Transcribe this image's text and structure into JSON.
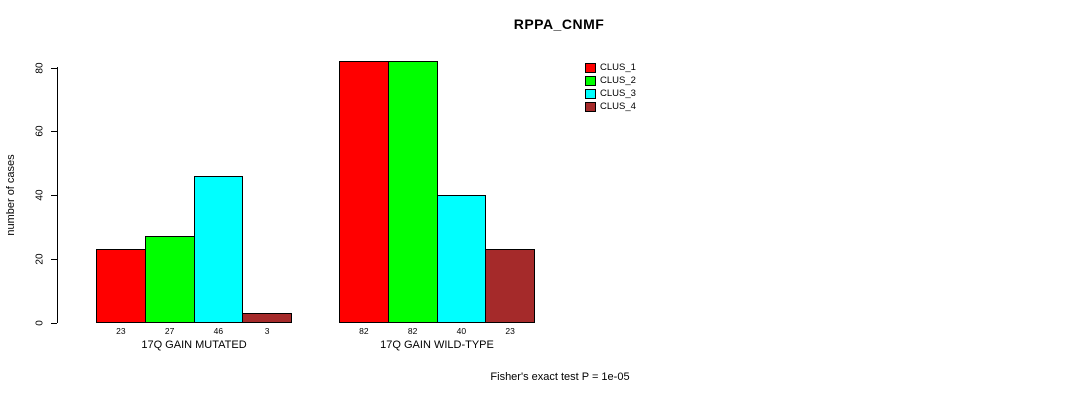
{
  "title": "RPPA_CNMF",
  "footer": "Fisher's exact test P = 1e-05",
  "colors": {
    "clus_1": "#FF0000",
    "clus_2": "#00FF00",
    "clus_3": "#00FFFF",
    "clus_4": "#A52A2A",
    "axis": "#000000",
    "background": "#FFFFFF"
  },
  "chart_data": {
    "type": "bar",
    "title": "RPPA_CNMF",
    "xlabel": "",
    "ylabel": "number of cases",
    "ylim": [
      0,
      85
    ],
    "yticks": [
      0,
      20,
      40,
      60,
      80
    ],
    "grid": false,
    "legend_position": "top-right",
    "categories": [
      "17Q GAIN MUTATED",
      "17Q GAIN WILD-TYPE"
    ],
    "series": [
      {
        "name": "CLUS_1",
        "color": "#FF0000",
        "values": [
          23,
          82
        ]
      },
      {
        "name": "CLUS_2",
        "color": "#00FF00",
        "values": [
          27,
          82
        ]
      },
      {
        "name": "CLUS_3",
        "color": "#00FFFF",
        "values": [
          46,
          40
        ]
      },
      {
        "name": "CLUS_4",
        "color": "#A52A2A",
        "values": [
          3,
          23
        ]
      }
    ],
    "bar_value_labels": [
      [
        "23",
        "27",
        "46",
        "3"
      ],
      [
        "82",
        "82",
        "40",
        "23"
      ]
    ],
    "annotation": "Fisher's exact test P = 1e-05"
  }
}
